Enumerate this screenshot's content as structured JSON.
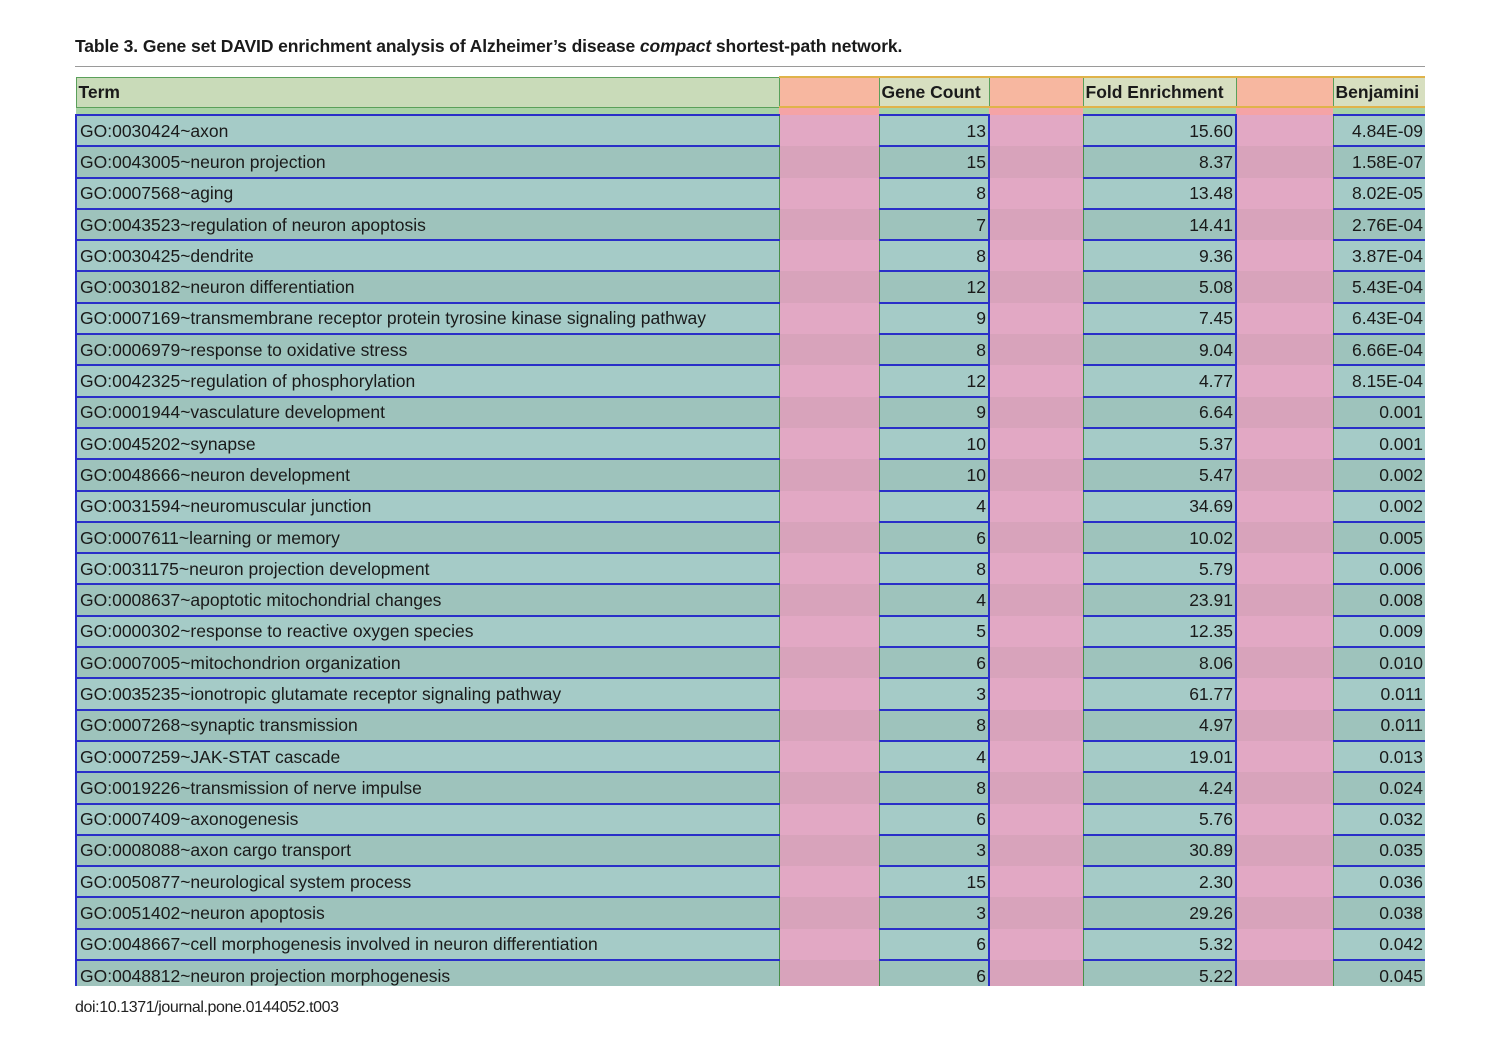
{
  "caption": {
    "prefix": "Table 3.  Gene set DAVID enrichment analysis of Alzheimer’s disease ",
    "italic": "compact",
    "suffix": " shortest-path network."
  },
  "table": {
    "headers": {
      "term": "Term",
      "gene_count": "Gene Count",
      "fold_enrichment": "Fold Enrichment",
      "benjamini": "Benjamini"
    },
    "rows": [
      {
        "term": "GO:0030424~axon",
        "gene_count": "13",
        "fold_enrichment": "15.60",
        "benjamini": "4.84E-09"
      },
      {
        "term": "GO:0043005~neuron projection",
        "gene_count": "15",
        "fold_enrichment": "8.37",
        "benjamini": "1.58E-07"
      },
      {
        "term": "GO:0007568~aging",
        "gene_count": "8",
        "fold_enrichment": "13.48",
        "benjamini": "8.02E-05"
      },
      {
        "term": "GO:0043523~regulation of neuron apoptosis",
        "gene_count": "7",
        "fold_enrichment": "14.41",
        "benjamini": "2.76E-04"
      },
      {
        "term": "GO:0030425~dendrite",
        "gene_count": "8",
        "fold_enrichment": "9.36",
        "benjamini": "3.87E-04"
      },
      {
        "term": "GO:0030182~neuron differentiation",
        "gene_count": "12",
        "fold_enrichment": "5.08",
        "benjamini": "5.43E-04"
      },
      {
        "term": "GO:0007169~transmembrane receptor protein tyrosine kinase signaling pathway",
        "gene_count": "9",
        "fold_enrichment": "7.45",
        "benjamini": "6.43E-04"
      },
      {
        "term": "GO:0006979~response to oxidative stress",
        "gene_count": "8",
        "fold_enrichment": "9.04",
        "benjamini": "6.66E-04"
      },
      {
        "term": "GO:0042325~regulation of phosphorylation",
        "gene_count": "12",
        "fold_enrichment": "4.77",
        "benjamini": "8.15E-04"
      },
      {
        "term": "GO:0001944~vasculature development",
        "gene_count": "9",
        "fold_enrichment": "6.64",
        "benjamini": "0.001"
      },
      {
        "term": "GO:0045202~synapse",
        "gene_count": "10",
        "fold_enrichment": "5.37",
        "benjamini": "0.001"
      },
      {
        "term": "GO:0048666~neuron development",
        "gene_count": "10",
        "fold_enrichment": "5.47",
        "benjamini": "0.002"
      },
      {
        "term": "GO:0031594~neuromuscular junction",
        "gene_count": "4",
        "fold_enrichment": "34.69",
        "benjamini": "0.002"
      },
      {
        "term": "GO:0007611~learning or memory",
        "gene_count": "6",
        "fold_enrichment": "10.02",
        "benjamini": "0.005"
      },
      {
        "term": "GO:0031175~neuron projection development",
        "gene_count": "8",
        "fold_enrichment": "5.79",
        "benjamini": "0.006"
      },
      {
        "term": "GO:0008637~apoptotic mitochondrial changes",
        "gene_count": "4",
        "fold_enrichment": "23.91",
        "benjamini": "0.008"
      },
      {
        "term": "GO:0000302~response to reactive oxygen species",
        "gene_count": "5",
        "fold_enrichment": "12.35",
        "benjamini": "0.009"
      },
      {
        "term": "GO:0007005~mitochondrion organization",
        "gene_count": "6",
        "fold_enrichment": "8.06",
        "benjamini": "0.010"
      },
      {
        "term": "GO:0035235~ionotropic glutamate receptor signaling pathway",
        "gene_count": "3",
        "fold_enrichment": "61.77",
        "benjamini": "0.011"
      },
      {
        "term": "GO:0007268~synaptic transmission",
        "gene_count": "8",
        "fold_enrichment": "4.97",
        "benjamini": "0.011"
      },
      {
        "term": "GO:0007259~JAK-STAT cascade",
        "gene_count": "4",
        "fold_enrichment": "19.01",
        "benjamini": "0.013"
      },
      {
        "term": "GO:0019226~transmission of nerve impulse",
        "gene_count": "8",
        "fold_enrichment": "4.24",
        "benjamini": "0.024"
      },
      {
        "term": "GO:0007409~axonogenesis",
        "gene_count": "6",
        "fold_enrichment": "5.76",
        "benjamini": "0.032"
      },
      {
        "term": "GO:0008088~axon cargo transport",
        "gene_count": "3",
        "fold_enrichment": "30.89",
        "benjamini": "0.035"
      },
      {
        "term": "GO:0050877~neurological system process",
        "gene_count": "15",
        "fold_enrichment": "2.30",
        "benjamini": "0.036"
      },
      {
        "term": "GO:0051402~neuron apoptosis",
        "gene_count": "3",
        "fold_enrichment": "29.26",
        "benjamini": "0.038"
      },
      {
        "term": "GO:0048667~cell morphogenesis involved in neuron differentiation",
        "gene_count": "6",
        "fold_enrichment": "5.32",
        "benjamini": "0.042"
      },
      {
        "term": "GO:0048812~neuron projection morphogenesis",
        "gene_count": "6",
        "fold_enrichment": "5.22",
        "benjamini": "0.045"
      }
    ]
  },
  "footer": {
    "doi": "doi:10.1371/journal.pone.0144052.t003"
  }
}
